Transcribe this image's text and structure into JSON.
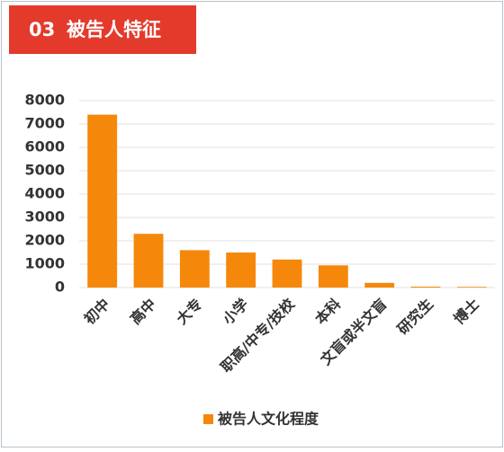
{
  "header": {
    "number": "03",
    "title": "被告人特征"
  },
  "chart_data": {
    "type": "bar",
    "categories": [
      "初中",
      "高中",
      "大专",
      "小学",
      "职高/中专/技校",
      "本科",
      "文盲或半文盲",
      "研究生",
      "博士"
    ],
    "series": [
      {
        "name": "被告人文化程度",
        "color": "#f5880a",
        "values": [
          7400,
          2300,
          1600,
          1500,
          1200,
          950,
          200,
          40,
          30
        ]
      }
    ],
    "ylim": [
      0,
      8000
    ],
    "yticks": [
      0,
      1000,
      2000,
      3000,
      4000,
      5000,
      6000,
      7000,
      8000
    ],
    "grid": true,
    "legend": "bottom"
  }
}
